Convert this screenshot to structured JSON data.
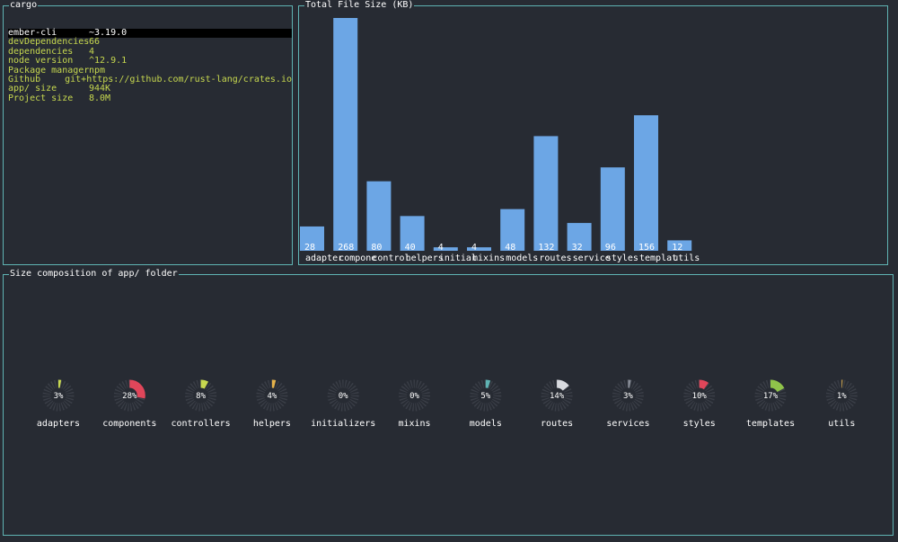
{
  "info": {
    "title": "cargo",
    "rows": [
      {
        "key": "ember-cli",
        "value": "~3.19.0"
      },
      {
        "key": "devDependencies",
        "value": "66"
      },
      {
        "key": "dependencies",
        "value": "4"
      },
      {
        "key": "node version",
        "value": "^12.9.1"
      },
      {
        "key": "Package manager",
        "value": "npm"
      },
      {
        "key": "Github",
        "value": "git+https://github.com/rust-lang/crates.io"
      },
      {
        "key": "app/ size",
        "value": "944K"
      },
      {
        "key": "Project size",
        "value": "8.0M"
      }
    ]
  },
  "bar_panel": {
    "title": "Total File Size (KB)"
  },
  "donut_panel": {
    "title": "Size composition of app/ folder"
  },
  "colors": {
    "border": "#5fb3b3",
    "bar": "#6ca6e5",
    "selected_bg": "#000000",
    "info_text": "#c7d84f",
    "donut_track": "#4b4f57"
  },
  "chart_data": [
    {
      "type": "bar",
      "title": "Total File Size (KB)",
      "categories": [
        "adapter",
        "compone",
        "control",
        "helpers",
        "initial",
        "mixins",
        "models",
        "routes",
        "service",
        "styles",
        "templat",
        "utils"
      ],
      "values": [
        28,
        268,
        80,
        40,
        4,
        4,
        48,
        132,
        32,
        96,
        156,
        12
      ],
      "ylim": [
        0,
        268
      ],
      "grid": false
    },
    {
      "type": "pie",
      "title": "Size composition of app/ folder",
      "categories": [
        "adapters",
        "components",
        "controllers",
        "helpers",
        "initializers",
        "mixins",
        "models",
        "routes",
        "services",
        "styles",
        "templates",
        "utils"
      ],
      "labels": [
        "3%",
        "28%",
        "8%",
        "4%",
        "0%",
        "0%",
        "5%",
        "14%",
        "3%",
        "10%",
        "17%",
        "1%"
      ],
      "values": [
        3,
        28,
        8,
        4,
        0,
        0,
        5,
        14,
        3,
        10,
        17,
        1
      ],
      "colors": [
        "#c7d84f",
        "#e0465a",
        "#c7d84f",
        "#e5b24a",
        "#6ca6e5",
        "#6ca6e5",
        "#5fb3b3",
        "#d8dadf",
        "#8a8f99",
        "#e0465a",
        "#8fc34a",
        "#e5b24a"
      ]
    }
  ]
}
